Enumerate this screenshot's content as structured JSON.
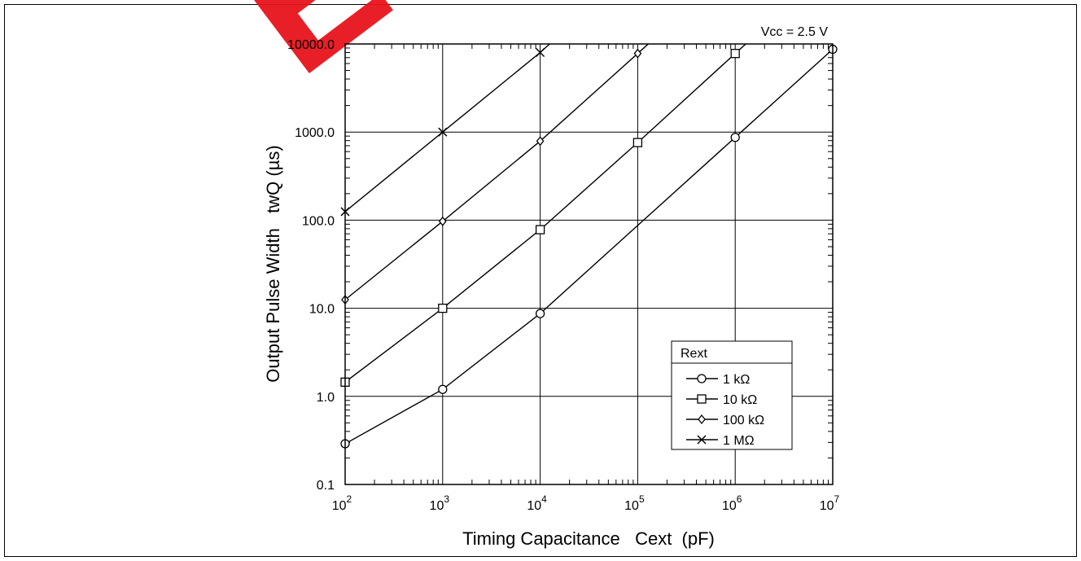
{
  "watermark": "EOL",
  "chart_data": {
    "type": "line",
    "title": "",
    "condition": "Vcc = 2.5 V",
    "xlabel": "Timing Capacitance   Cext  (pF)",
    "ylabel": "Output Pulse Width   twQ (µs)",
    "xscale": "log",
    "yscale": "log",
    "xlim": [
      100,
      10000000
    ],
    "ylim": [
      0.1,
      10000
    ],
    "grid": true,
    "x_ticks": [
      {
        "value": 100,
        "base": "10",
        "exp": "2"
      },
      {
        "value": 1000,
        "base": "10",
        "exp": "3"
      },
      {
        "value": 10000,
        "base": "10",
        "exp": "4"
      },
      {
        "value": 100000,
        "base": "10",
        "exp": "5"
      },
      {
        "value": 1000000,
        "base": "10",
        "exp": "6"
      },
      {
        "value": 10000000,
        "base": "10",
        "exp": "7"
      }
    ],
    "y_ticks": [
      {
        "value": 0.1,
        "label": "0.1"
      },
      {
        "value": 1,
        "label": "1.0"
      },
      {
        "value": 10,
        "label": "10.0"
      },
      {
        "value": 100,
        "label": "100.0"
      },
      {
        "value": 1000,
        "label": "1000.0"
      },
      {
        "value": 10000,
        "label": "10000.0"
      }
    ],
    "legend": {
      "title": "Rext",
      "position": "lower-right"
    },
    "series": [
      {
        "name": "1 kΩ",
        "marker": "circle",
        "x": [
          100,
          1000,
          10000,
          1000000,
          10000000
        ],
        "y": [
          0.29,
          1.2,
          8.7,
          870,
          8700
        ],
        "marker_x": [
          100,
          1000,
          10000,
          1000000,
          10000000
        ]
      },
      {
        "name": "10 kΩ",
        "marker": "square",
        "x": [
          100,
          1000,
          10000,
          100000,
          1000000,
          3000000
        ],
        "y": [
          1.45,
          10,
          78,
          760,
          7800,
          23400
        ],
        "marker_x": [
          100,
          1000,
          10000,
          100000,
          1000000
        ]
      },
      {
        "name": "100 kΩ",
        "marker": "diamond",
        "x": [
          100,
          1000,
          10000,
          100000,
          300000
        ],
        "y": [
          12.5,
          97,
          790,
          7800,
          23400
        ],
        "marker_x": [
          100,
          1000,
          10000,
          100000
        ]
      },
      {
        "name": "1 MΩ",
        "marker": "x",
        "x": [
          100,
          1000,
          10000,
          30000
        ],
        "y": [
          125,
          1000,
          8000,
          24000
        ],
        "marker_x": [
          100,
          1000,
          10000
        ]
      }
    ]
  }
}
